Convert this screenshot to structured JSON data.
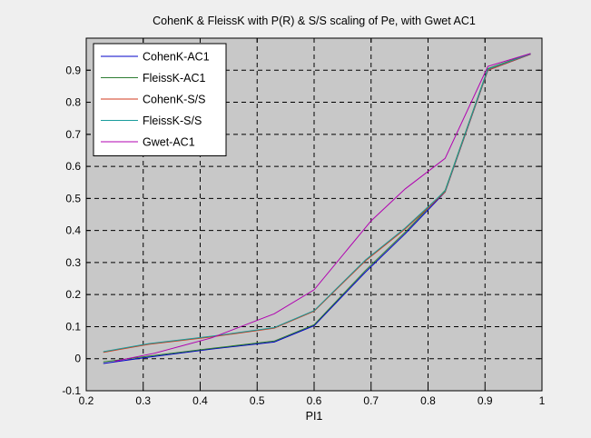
{
  "chart_data": {
    "type": "line",
    "title": "CohenK & FleissK with P(R) & S/S scaling of Pe, with Gwet AC1",
    "xlabel": "PI1",
    "ylabel": "",
    "xlim": [
      0.2,
      1.0
    ],
    "ylim": [
      -0.1,
      1.0
    ],
    "xticks": [
      "0.2",
      "0.3",
      "0.4",
      "0.5",
      "0.6",
      "0.7",
      "0.8",
      "0.9",
      "1"
    ],
    "yticks": [
      "-0.1",
      "0",
      "0.1",
      "0.2",
      "0.3",
      "0.4",
      "0.5",
      "0.6",
      "0.7",
      "0.8",
      "0.9"
    ],
    "grid": true,
    "legend_position": "top-left",
    "background": "#c8c8c8",
    "series": [
      {
        "name": "CohenK-AC1",
        "color": "#0000c8",
        "points": [
          [
            0.23,
            -0.015
          ],
          [
            0.31,
            0.005
          ],
          [
            0.42,
            0.03
          ],
          [
            0.53,
            0.052
          ],
          [
            0.6,
            0.103
          ],
          [
            0.69,
            0.27
          ],
          [
            0.76,
            0.39
          ],
          [
            0.83,
            0.52
          ],
          [
            0.905,
            0.9
          ],
          [
            0.98,
            0.95
          ]
        ]
      },
      {
        "name": "FleissK-AC1",
        "color": "#2e7d32",
        "points": [
          [
            0.23,
            -0.01
          ],
          [
            0.31,
            0.008
          ],
          [
            0.42,
            0.032
          ],
          [
            0.53,
            0.055
          ],
          [
            0.6,
            0.106
          ],
          [
            0.69,
            0.275
          ],
          [
            0.76,
            0.395
          ],
          [
            0.83,
            0.525
          ],
          [
            0.905,
            0.905
          ],
          [
            0.98,
            0.952
          ]
        ]
      },
      {
        "name": "CohenK-S/S",
        "color": "#d03a1c",
        "points": [
          [
            0.23,
            0.02
          ],
          [
            0.31,
            0.045
          ],
          [
            0.42,
            0.068
          ],
          [
            0.53,
            0.095
          ],
          [
            0.6,
            0.148
          ],
          [
            0.69,
            0.305
          ],
          [
            0.76,
            0.405
          ],
          [
            0.83,
            0.52
          ],
          [
            0.905,
            0.9
          ],
          [
            0.98,
            0.95
          ]
        ]
      },
      {
        "name": "FleissK-S/S",
        "color": "#1a9c9c",
        "points": [
          [
            0.23,
            0.022
          ],
          [
            0.31,
            0.047
          ],
          [
            0.42,
            0.07
          ],
          [
            0.53,
            0.097
          ],
          [
            0.6,
            0.15
          ],
          [
            0.69,
            0.308
          ],
          [
            0.76,
            0.408
          ],
          [
            0.83,
            0.523
          ],
          [
            0.905,
            0.903
          ],
          [
            0.98,
            0.951
          ]
        ]
      },
      {
        "name": "Gwet-AC1",
        "color": "#b000b0",
        "points": [
          [
            0.25,
            -0.008
          ],
          [
            0.32,
            0.017
          ],
          [
            0.42,
            0.065
          ],
          [
            0.53,
            0.14
          ],
          [
            0.6,
            0.215
          ],
          [
            0.7,
            0.43
          ],
          [
            0.76,
            0.53
          ],
          [
            0.83,
            0.625
          ],
          [
            0.905,
            0.912
          ],
          [
            0.98,
            0.952
          ]
        ]
      }
    ]
  }
}
